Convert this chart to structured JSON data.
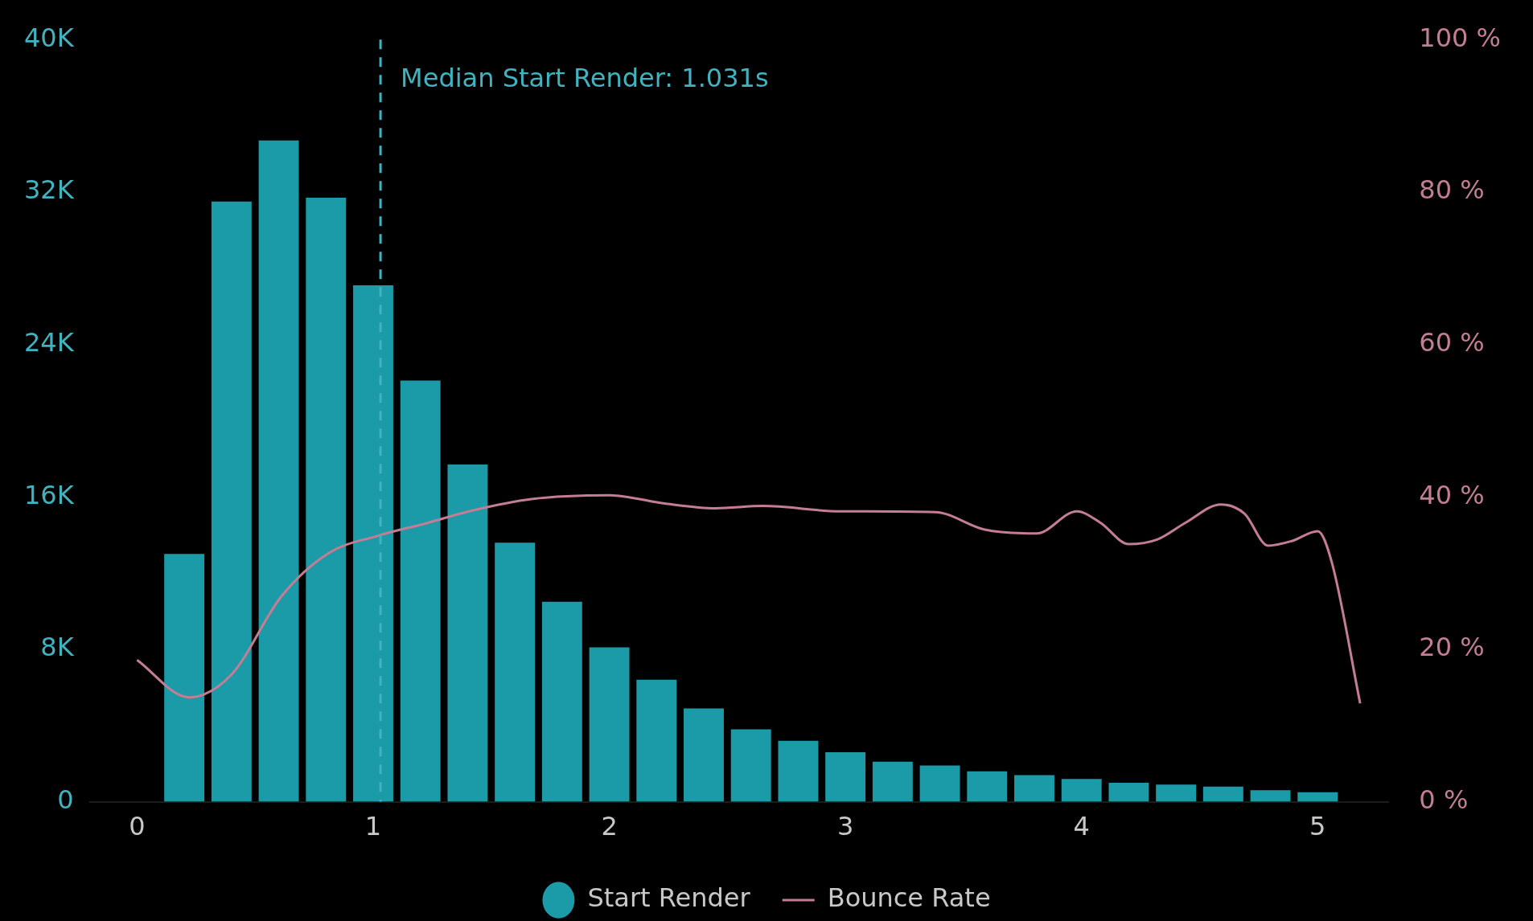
{
  "chart_data": {
    "type": "histogram",
    "bins": [
      0.1,
      0.3,
      0.5,
      0.7,
      0.9,
      1.1,
      1.3,
      1.5,
      1.7,
      1.9,
      2.1,
      2.3,
      2.5,
      2.7,
      2.9,
      3.1,
      3.3,
      3.5,
      3.7,
      3.9,
      4.1,
      4.3,
      4.5,
      4.7,
      4.9,
      5.1
    ],
    "xlim": [
      -0.2,
      5.3
    ],
    "xticks": [
      0,
      1,
      2,
      3,
      4,
      5
    ],
    "ylim": [
      0,
      40000
    ],
    "yticks": [
      0,
      {
        "value": 8000,
        "label": "8K"
      },
      {
        "value": 16000,
        "label": "16K"
      },
      {
        "value": 24000,
        "label": "24K"
      },
      {
        "value": 32000,
        "label": "32K"
      },
      {
        "value": 40000,
        "label": "40K"
      }
    ],
    "y2lim": [
      0,
      100
    ],
    "y2ticks": [
      {
        "value": 0,
        "label": "0 %"
      },
      {
        "value": 20,
        "label": "20 %"
      },
      {
        "value": 40,
        "label": "40 %"
      },
      {
        "value": 60,
        "label": "60 %"
      },
      {
        "value": 80,
        "label": "80 %"
      },
      {
        "value": 100,
        "label": "100 %"
      }
    ],
    "series": [
      {
        "name": "Start Render",
        "type": "histogram",
        "color": "#1b9aa8",
        "values": [
          13000,
          31500,
          34700,
          31700,
          27100,
          22100,
          17700,
          13600,
          10500,
          8100,
          6400,
          4900,
          3800,
          3200,
          2600,
          2100,
          1900,
          1600,
          1400,
          1200,
          1000,
          900,
          800,
          600,
          500
        ]
      },
      {
        "name": "Bounce Rate",
        "type": "line",
        "axis": "y2",
        "color": "#c47d93",
        "marker": "none",
        "line_style": "solid",
        "x": [
          0,
          0.22,
          0.4,
          0.61,
          0.81,
          1.02,
          1.22,
          1.42,
          1.67,
          2.0,
          2.24,
          2.45,
          2.65,
          2.98,
          3.38,
          3.59,
          3.81,
          3.98,
          4.08,
          4.2,
          4.32,
          4.44,
          4.59,
          4.69,
          4.79,
          4.89,
          5.0,
          5.06,
          5.18
        ],
        "values": [
          18.6,
          13.7,
          16.7,
          26.9,
          32.6,
          34.9,
          36.5,
          38.2,
          39.7,
          40.2,
          39.1,
          38.5,
          38.8,
          38.1,
          38.0,
          35.7,
          35.2,
          38.1,
          36.6,
          33.8,
          34.4,
          36.6,
          39.0,
          37.8,
          33.6,
          34.2,
          35.5,
          31.4,
          12.9
        ]
      }
    ],
    "ref_lines": [
      {
        "axis": "x",
        "value": 1.031,
        "label": "Median Start Render: 1.031s",
        "color": "#3fb3c0",
        "line_style": "dashed"
      }
    ],
    "legend": "bottom",
    "grid": false
  }
}
